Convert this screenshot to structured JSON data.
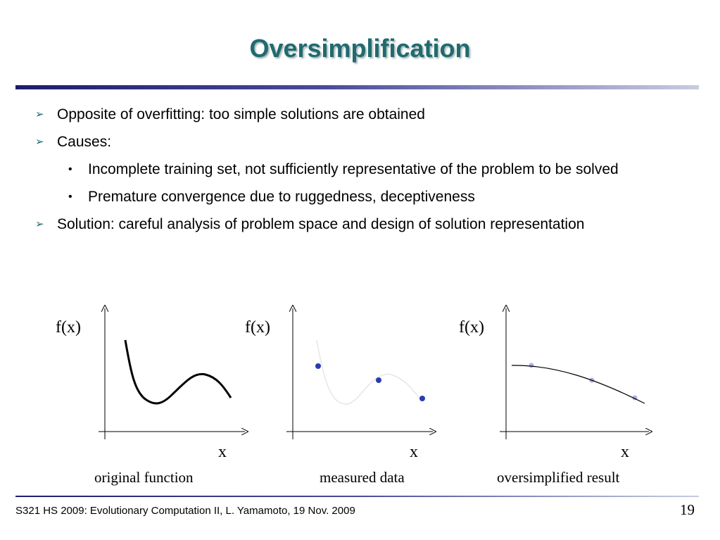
{
  "slide": {
    "title": "Oversimplification",
    "bullets": [
      "Opposite of overfitting: too simple solutions are obtained",
      "Causes:",
      "Solution: careful analysis of problem space and design of solution representation"
    ],
    "sub_bullets": [
      "Incomplete training set, not sufficiently representative of the problem to be solved",
      "Premature convergence due to ruggedness, deceptiveness"
    ],
    "figures": {
      "panel1": {
        "ylabel": "f(x)",
        "xlabel": "x",
        "caption": "original function"
      },
      "panel2": {
        "ylabel": "f(x)",
        "xlabel": "x",
        "caption": "measured data"
      },
      "panel3": {
        "ylabel": "f(x)",
        "xlabel": "x",
        "caption": "oversimplified result"
      }
    },
    "footer": "S321 HS 2009: Evolutionary Computation II, L. Yamamoto, 19 Nov. 2009",
    "page_number": "19"
  },
  "colors": {
    "title": "#1f6b6f",
    "rule": "#1d1d6e",
    "data_point": "#2b3bb0",
    "faded_point": "#aab0e6"
  }
}
